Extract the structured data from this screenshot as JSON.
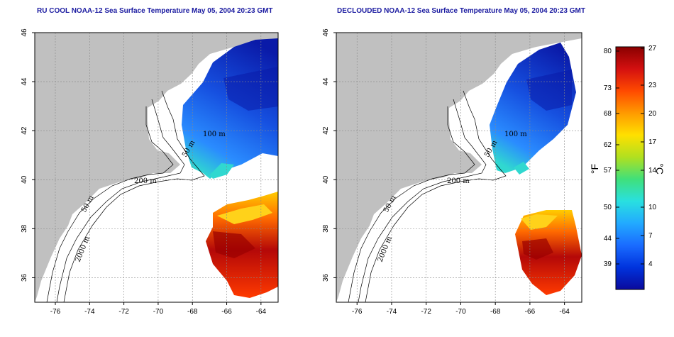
{
  "titles": {
    "left": "RU COOL NOAA-12 Sea Surface Temperature May 05, 2004 20:23 GMT",
    "right": "DECLOUDED NOAA-12 Sea Surface Temperature May 05, 2004 20:23 GMT"
  },
  "axes": {
    "lon_ticks": [
      -76,
      -74,
      -72,
      -70,
      -68,
      -66,
      -64
    ],
    "lat_ticks": [
      36,
      38,
      40,
      42,
      44,
      46
    ],
    "lon_range": [
      -77.2,
      -63.0
    ],
    "lat_range": [
      35.0,
      46.0
    ],
    "grid": "dashed"
  },
  "contours": {
    "labels": [
      "50 m",
      "200 m",
      "2000 m",
      "100 m",
      "50 m"
    ]
  },
  "colorbar": {
    "fahrenheit_ticks": [
      "80",
      "73",
      "68",
      "62",
      "57",
      "50",
      "44",
      "39"
    ],
    "celsius_ticks": [
      "27",
      "23",
      "20",
      "17",
      "14",
      "10",
      "7",
      "4"
    ],
    "fahrenheit_unit": "°F",
    "celsius_unit": "°C",
    "colors": [
      "#0a0a9c",
      "#0033dd",
      "#1a6cff",
      "#22aaff",
      "#29e0e0",
      "#40e07a",
      "#b0e020",
      "#ffe000",
      "#ff9a00",
      "#ff4a00",
      "#d41010",
      "#8a0000"
    ]
  },
  "colors": {
    "land": "#c0c0c0",
    "ocean": "#ffffff",
    "cold": "#1a5ae8",
    "warm": "#e83a10",
    "frame": "#000000"
  }
}
